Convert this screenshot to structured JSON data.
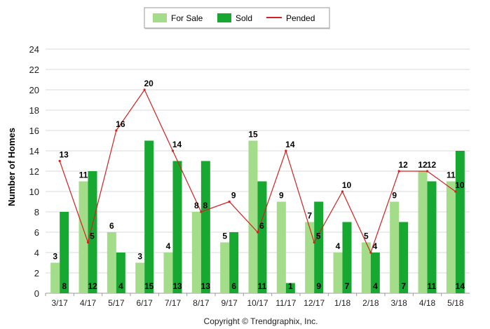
{
  "chart_data": {
    "type": "bar",
    "categories": [
      "3/17",
      "4/17",
      "5/17",
      "6/17",
      "7/17",
      "8/17",
      "9/17",
      "10/17",
      "11/17",
      "12/17",
      "1/18",
      "2/18",
      "3/18",
      "4/18",
      "5/18"
    ],
    "series": [
      {
        "name": "For Sale",
        "type": "bar",
        "color": "#a3dd8a",
        "values": [
          3,
          11,
          6,
          3,
          4,
          8,
          5,
          15,
          9,
          7,
          4,
          5,
          9,
          12,
          11
        ]
      },
      {
        "name": "Sold",
        "type": "bar",
        "color": "#17a832",
        "values": [
          8,
          12,
          4,
          15,
          13,
          13,
          6,
          11,
          1,
          9,
          7,
          4,
          7,
          11,
          14
        ]
      },
      {
        "name": "Pended",
        "type": "line",
        "color": "#d42020",
        "values": [
          13,
          5,
          16,
          20,
          14,
          8,
          9,
          6,
          14,
          5,
          10,
          4,
          12,
          12,
          10
        ]
      }
    ],
    "ylabel": "Number of Homes",
    "xlabel": "",
    "ylim": [
      0,
      24
    ],
    "yticks": [
      0,
      2,
      4,
      6,
      8,
      10,
      12,
      14,
      16,
      18,
      20,
      22,
      24
    ],
    "grid": true,
    "legend_position": "top-center"
  },
  "copyright": "Copyright © Trendgraphix, Inc."
}
